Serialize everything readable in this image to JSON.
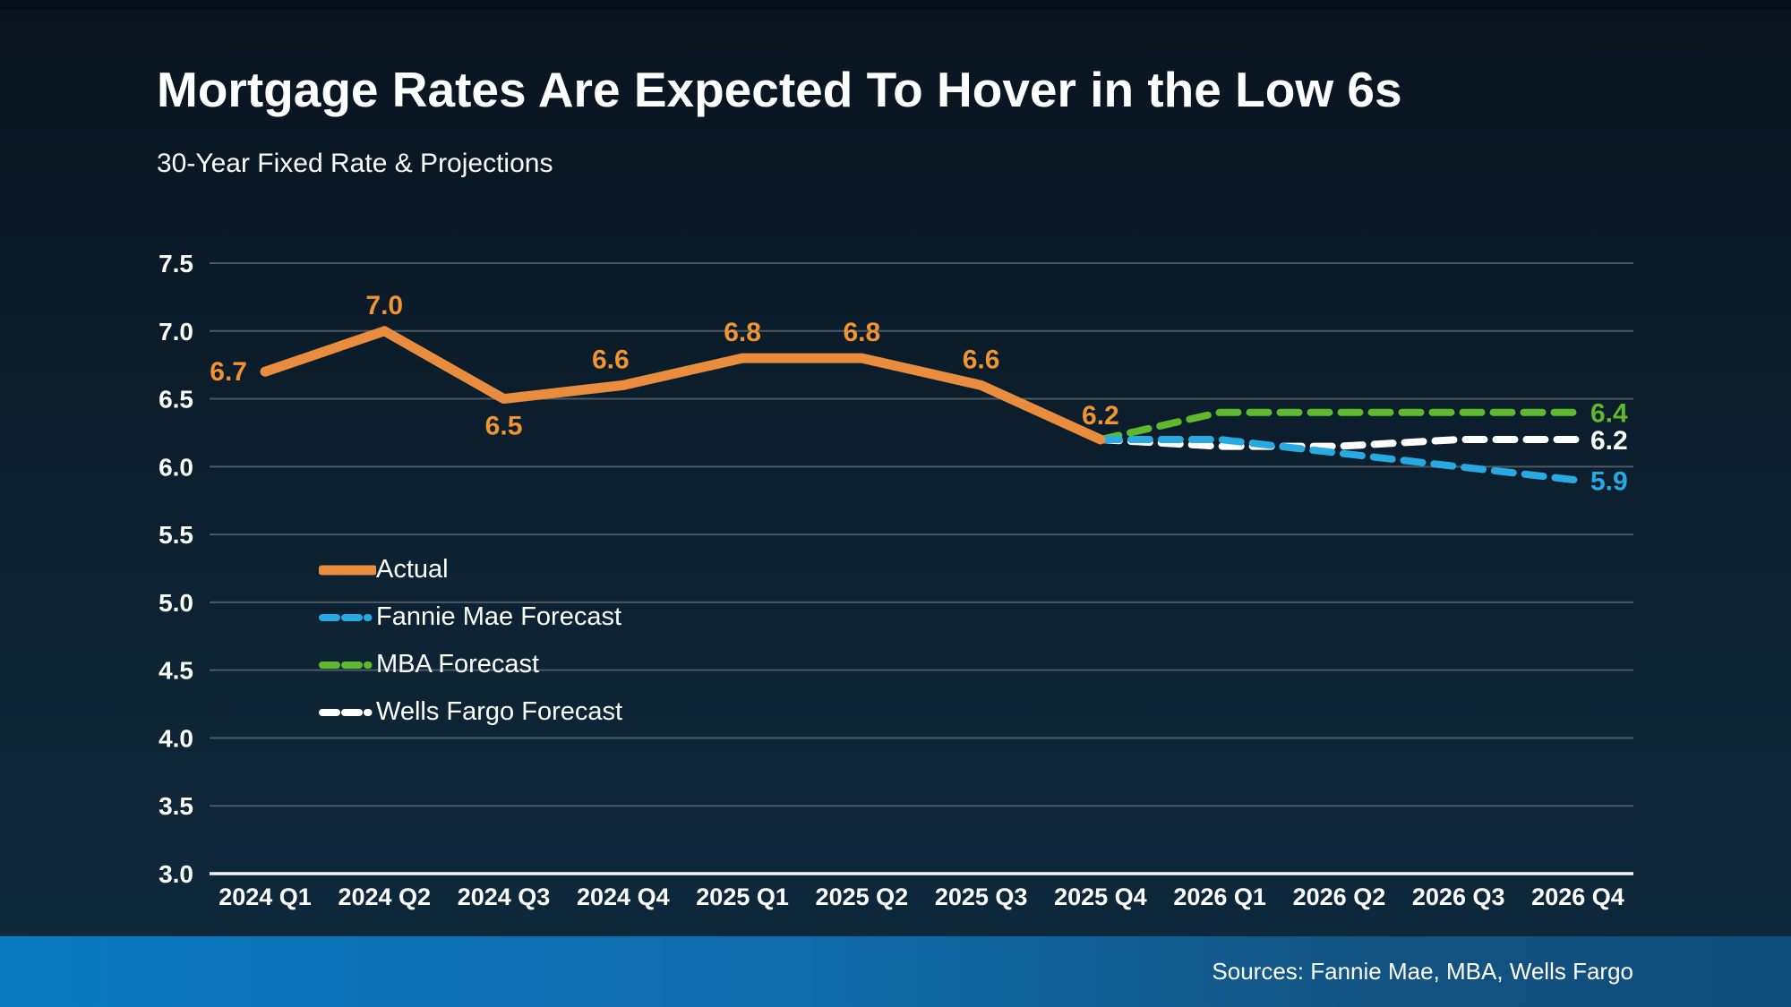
{
  "slide": {
    "title": "Mortgage Rates Are Expected To Hover in the Low 6s",
    "subtitle": "30-Year Fixed Rate & Projections",
    "source_note": "Sources: Fannie Mae, MBA, Wells Fargo"
  },
  "colors": {
    "background_top": "#0a141f",
    "background_bottom": "#0f2a3e",
    "grid": "#4d5a66",
    "axis": "#f2f5f7",
    "data_label": "#f09333",
    "actual": "#e98c3e",
    "fannie_mae": "#29a9e1",
    "mba": "#5eb92e",
    "wells_fargo": "#ffffff",
    "bottom_bar_left": "#0a7ac2",
    "bottom_bar_right": "#104e7c"
  },
  "chart_data": {
    "type": "line",
    "title": "30-Year Fixed Rate & Projections",
    "grid": "horizontal",
    "ylim": [
      3.0,
      7.5
    ],
    "ytick_step": 0.5,
    "ytick_labels": [
      "7.5",
      "7.0",
      "6.5",
      "6.0",
      "5.5",
      "5.0",
      "4.5",
      "4.0",
      "3.5",
      "3.0"
    ],
    "legend_position": "inside-left",
    "categories": [
      "2024 Q1",
      "2024 Q2",
      "2024 Q3",
      "2024 Q4",
      "2025 Q1",
      "2025 Q2",
      "2025 Q3",
      "2025 Q4",
      "2026 Q1",
      "2026 Q2",
      "2026 Q3",
      "2026 Q4"
    ],
    "series": [
      {
        "name": "Actual",
        "color": "#e98c3e",
        "style": "solid",
        "values": [
          6.7,
          7.0,
          6.5,
          6.6,
          6.8,
          6.8,
          6.6,
          6.2,
          null,
          null,
          null,
          null
        ],
        "point_labels": [
          {
            "text": "6.7",
            "dx": -20,
            "dy": 10,
            "anchor": "end"
          },
          {
            "text": "7.0",
            "dy": -19
          },
          {
            "text": "6.5",
            "dy": 40
          },
          {
            "text": "6.6",
            "dx": -14,
            "dy": -19
          },
          {
            "text": "6.8",
            "dy": -19
          },
          {
            "text": "6.8",
            "dy": -19
          },
          {
            "text": "6.6",
            "dy": -19
          },
          {
            "text": "6.2",
            "dy": -17
          }
        ]
      },
      {
        "name": "Fannie Mae Forecast",
        "color": "#29a9e1",
        "style": "dashed",
        "values": [
          null,
          null,
          null,
          null,
          null,
          null,
          null,
          6.2,
          6.2,
          6.1,
          6.0,
          5.9
        ],
        "end_label": "5.9"
      },
      {
        "name": "MBA Forecast",
        "color": "#5eb92e",
        "style": "dashed",
        "values": [
          null,
          null,
          null,
          null,
          null,
          null,
          null,
          6.2,
          6.4,
          6.4,
          6.4,
          6.4
        ],
        "end_label": "6.4"
      },
      {
        "name": "Wells Fargo Forecast",
        "color": "#ffffff",
        "style": "dashed",
        "values": [
          null,
          null,
          null,
          null,
          null,
          null,
          null,
          6.2,
          6.15,
          6.15,
          6.2,
          6.2
        ],
        "end_label": "6.2"
      }
    ]
  },
  "legend": {
    "items": [
      {
        "label": "Actual"
      },
      {
        "label": "Fannie Mae Forecast"
      },
      {
        "label": "MBA Forecast"
      },
      {
        "label": "Wells Fargo Forecast"
      }
    ]
  }
}
